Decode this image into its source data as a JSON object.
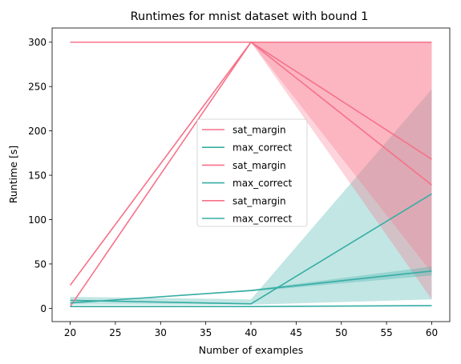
{
  "chart_data": {
    "type": "line",
    "title": "Runtimes for mnist dataset with bound 1",
    "xlabel": "Number of examples",
    "ylabel": "Runtime [s]",
    "xlim": [
      18,
      62
    ],
    "ylim": [
      -15,
      316
    ],
    "xticks": [
      20,
      25,
      30,
      35,
      40,
      45,
      50,
      55,
      60
    ],
    "yticks": [
      0,
      50,
      100,
      150,
      200,
      250,
      300
    ],
    "grid": false,
    "legend_position": "center",
    "colors": {
      "sat_margin": "#f77189",
      "max_correct": "#36ada4"
    },
    "x": [
      20,
      40,
      60
    ],
    "series": [
      {
        "name": "sat_margin",
        "values": [
          300,
          300,
          300
        ],
        "band_lower": [
          300,
          300,
          270
        ],
        "band_upper": [
          300,
          300,
          300
        ]
      },
      {
        "name": "max_correct",
        "values": [
          9,
          5,
          129
        ],
        "band_lower": [
          4,
          4,
          10
        ],
        "band_upper": [
          13,
          10,
          247
        ]
      },
      {
        "name": "sat_margin",
        "values": [
          2,
          300,
          139
        ],
        "band_lower": [
          2,
          300,
          10
        ],
        "band_upper": [
          2,
          300,
          300
        ]
      },
      {
        "name": "max_correct",
        "values": [
          2,
          2,
          3
        ],
        "band_lower": [
          2,
          2,
          3
        ],
        "band_upper": [
          2,
          2,
          3
        ]
      },
      {
        "name": "sat_margin",
        "values": [
          26,
          300,
          168
        ],
        "band_lower": [
          26,
          300,
          40
        ],
        "band_upper": [
          26,
          300,
          270
        ]
      },
      {
        "name": "max_correct",
        "values": [
          6,
          20,
          42
        ],
        "band_lower": [
          6,
          19,
          37
        ],
        "band_upper": [
          6,
          21,
          47
        ]
      }
    ]
  }
}
